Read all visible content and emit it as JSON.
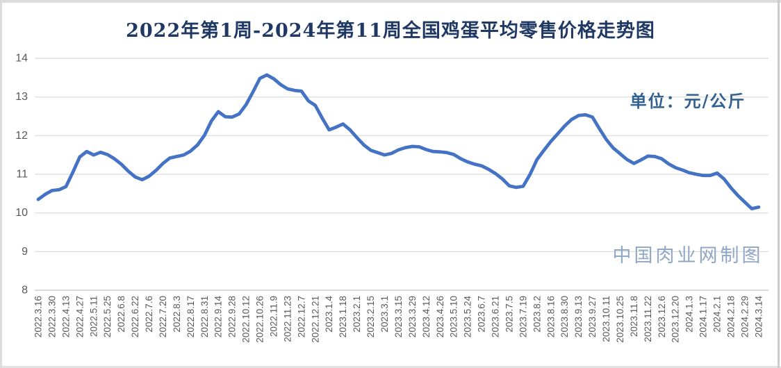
{
  "chart": {
    "title": "2022年第1周-2024年第11周全国鸡蛋平均零售价格走势图",
    "unit_label": "单位：元/公斤",
    "watermark": "中国肉业网制图",
    "colors": {
      "line": "#4472C4",
      "title": "#1F3864",
      "unit_label": "#33618F",
      "watermark": "#90A7C6",
      "gridline": "#D9D9D9",
      "axis_line": "#C0C0C0",
      "axis_text": "#595959",
      "background": "#FFFFFF",
      "frame": "#DCDCDC"
    }
  },
  "chart_data": {
    "type": "line",
    "title": "2022年第1周-2024年第11周全国鸡蛋平均零售价格走势图",
    "unit": "元/公斤",
    "ylim": [
      8,
      14
    ],
    "y_ticks": [
      8,
      9,
      10,
      11,
      12,
      13,
      14
    ],
    "grid": "horizontal",
    "legend": "none",
    "labels_every_n_points": 2,
    "x_tick_labels": [
      "2022.3.16",
      "2022.3.30",
      "2022.4.13",
      "2022.4.27",
      "2022.5.11",
      "2022.5.25",
      "2022.6.8",
      "2022.6.22",
      "2022.7.6",
      "2022.7.20",
      "2022.8.3",
      "2022.8.17",
      "2022.8.31",
      "2022.9.14",
      "2022.9.28",
      "2022.10.12",
      "2022.10.26",
      "2022.11.9",
      "2022.11.23",
      "2022.12.7",
      "2022.12.21",
      "2023.1.4",
      "2023.1.18",
      "2023.2.1",
      "2023.2.15",
      "2023.3.1",
      "2023.3.15",
      "2023.3.29",
      "2023.4.12",
      "2023.4.26",
      "2023.5.10",
      "2023.5.24",
      "2023.6.7",
      "2023.6.21",
      "2023.7.5",
      "2023.7.19",
      "2023.8.2",
      "2023.8.16",
      "2023.8.30",
      "2023.9.13",
      "2023.9.27",
      "2023.10.11",
      "2023.10.25",
      "2023.11.8",
      "2023.11.22",
      "2023.12.6",
      "2023.12.20",
      "2024.1.3",
      "2024.1.17",
      "2024.2.1",
      "2024.2.18",
      "2024.2.29",
      "2024.3.14"
    ],
    "values": [
      10.35,
      10.48,
      10.58,
      10.6,
      10.68,
      11.05,
      11.45,
      11.59,
      11.5,
      11.57,
      11.51,
      11.4,
      11.26,
      11.08,
      10.93,
      10.86,
      10.95,
      11.1,
      11.28,
      11.42,
      11.46,
      11.5,
      11.6,
      11.76,
      12.01,
      12.38,
      12.62,
      12.49,
      12.48,
      12.56,
      12.8,
      13.13,
      13.48,
      13.57,
      13.47,
      13.32,
      13.21,
      13.17,
      13.15,
      12.9,
      12.78,
      12.45,
      12.15,
      12.22,
      12.3,
      12.15,
      11.95,
      11.76,
      11.62,
      11.56,
      11.5,
      11.54,
      11.63,
      11.69,
      11.72,
      11.71,
      11.64,
      11.59,
      11.58,
      11.56,
      11.51,
      11.4,
      11.32,
      11.26,
      11.22,
      11.13,
      11.02,
      10.88,
      10.7,
      10.66,
      10.69,
      11.0,
      11.38,
      11.62,
      11.85,
      12.05,
      12.25,
      12.42,
      12.52,
      12.54,
      12.48,
      12.18,
      11.9,
      11.68,
      11.53,
      11.38,
      11.28,
      11.37,
      11.47,
      11.46,
      11.4,
      11.27,
      11.17,
      11.11,
      11.04,
      11.0,
      10.97,
      10.97,
      11.03,
      10.88,
      10.65,
      10.45,
      10.28,
      10.11,
      10.15
    ]
  }
}
